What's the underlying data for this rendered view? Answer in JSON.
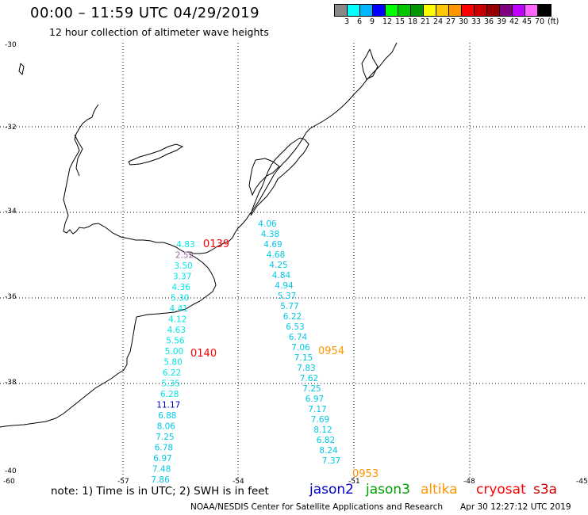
{
  "header": {
    "title": "00:00 – 11:59 UTC 04/29/2019",
    "subtitle": "12 hour collection of altimeter wave heights"
  },
  "colorbar": {
    "colors": [
      "#888888",
      "#00ffff",
      "#00b4ff",
      "#0000ff",
      "#00ff00",
      "#00c800",
      "#009600",
      "#ffff00",
      "#ffc800",
      "#ff9600",
      "#ff0000",
      "#c80000",
      "#960000",
      "#800080",
      "#c000ff",
      "#ff66ff",
      "#000000"
    ],
    "labels": [
      "3",
      "6",
      "9",
      "12",
      "15",
      "18",
      "21",
      "24",
      "27",
      "30",
      "33",
      "36",
      "39",
      "42",
      "45",
      "70",
      "(ft)"
    ]
  },
  "axes": {
    "lat_labels": [
      "-30",
      "-32",
      "-34",
      "-36",
      "-38",
      "-40"
    ],
    "lon_labels": [
      "-60",
      "-57",
      "-54",
      "-51",
      "-48",
      "-45"
    ]
  },
  "tracks": {
    "west_values": [
      "4.83",
      "2.52",
      "3.50",
      "3.37",
      "4.36",
      "5.30",
      "4.41",
      "4.12",
      "4.63",
      "5.56",
      "5.00",
      "5.80",
      "6.22",
      "5.35",
      "6.28",
      "11.17",
      "6.88",
      "8.06",
      "7.25",
      "6.78",
      "6.97",
      "7.48",
      "7.86"
    ],
    "west_colors": [
      "#00e5e5",
      "#aa66aa",
      "#00e5e5",
      "#00e5e5",
      "#00e5e5",
      "#00e5e5",
      "#00e5e5",
      "#00e5e5",
      "#00e5e5",
      "#00e5e5",
      "#00e5e5",
      "#00e5e5",
      "#00e5e5",
      "#00e5e5",
      "#00e5e5",
      "#0000cc",
      "#00c8e6",
      "#00c8e6",
      "#00c8e6",
      "#00c8e6",
      "#00c8e6",
      "#00c8e6",
      "#00c8e6"
    ],
    "east_values": [
      "4.06",
      "4.38",
      "4.69",
      "4.68",
      "4.25",
      "4.84",
      "4.94",
      "5.37",
      "5.77",
      "6.22",
      "6.53",
      "6.74",
      "7.06",
      "7.15",
      "7.83",
      "7.62",
      "7.25",
      "6.97",
      "7.17",
      "7.69",
      "8.12",
      "6.82",
      "8.24",
      "7.37"
    ],
    "times": [
      {
        "label": "0139",
        "color": "#ff0000"
      },
      {
        "label": "0140",
        "color": "#ff0000"
      },
      {
        "label": "0954",
        "color": "#ff9600"
      },
      {
        "label": "0953",
        "color": "#ff9600"
      }
    ]
  },
  "footer": {
    "note": "note:  1) Time is in UTC;  2) SWH is in feet",
    "legend": [
      {
        "label": "jason2",
        "color": "#0000cc"
      },
      {
        "label": "jason3",
        "color": "#00a000"
      },
      {
        "label": "altika",
        "color": "#ff9600"
      },
      {
        "label": "cryosat",
        "color": "#ff0000"
      },
      {
        "label": "s3a",
        "color": "#cc0000"
      }
    ],
    "credit": "NOAA/NESDIS Center for Satellite Applications and Research",
    "timestamp": "Apr 30 12:27:12 UTC 2019"
  }
}
